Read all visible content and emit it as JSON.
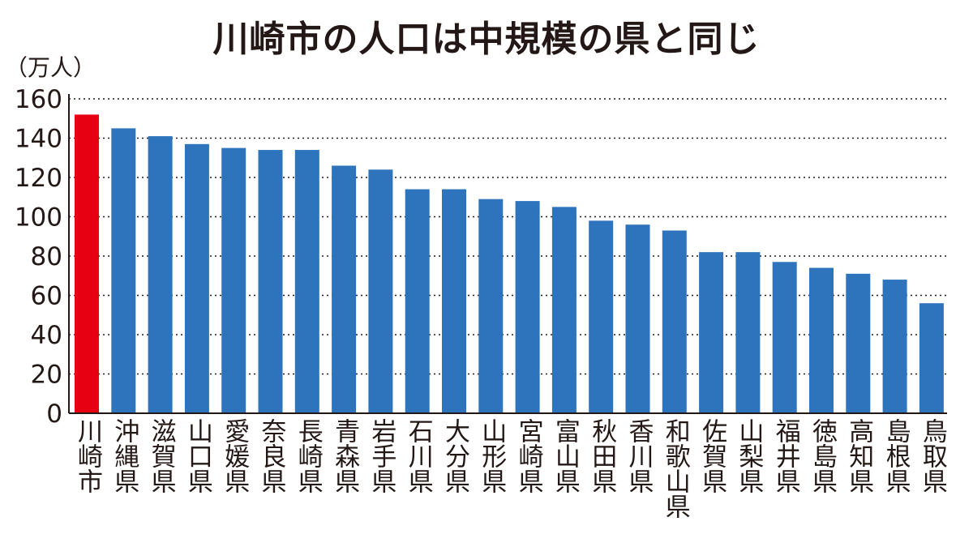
{
  "chart_data": {
    "type": "bar",
    "title": "川崎市の人口は中規模の県と同じ",
    "ylabel": "（万人）",
    "xlabel": "",
    "ylim": [
      0,
      160
    ],
    "yticks": [
      0,
      20,
      40,
      60,
      80,
      100,
      120,
      140,
      160
    ],
    "grid": true,
    "categories": [
      "川崎市",
      "沖縄県",
      "滋賀県",
      "山口県",
      "愛媛県",
      "奈良県",
      "長崎県",
      "青森県",
      "岩手県",
      "石川県",
      "大分県",
      "山形県",
      "宮崎県",
      "富山県",
      "秋田県",
      "香川県",
      "和歌山県",
      "佐賀県",
      "山梨県",
      "福井県",
      "徳島県",
      "高知県",
      "島根県",
      "鳥取県"
    ],
    "values": [
      152,
      145,
      141,
      137,
      135,
      134,
      134,
      126,
      124,
      114,
      114,
      109,
      108,
      105,
      98,
      96,
      93,
      82,
      82,
      77,
      74,
      71,
      68,
      56
    ],
    "highlight_index": 0,
    "colors": {
      "highlight": "#e60012",
      "bar": "#2e74bd",
      "grid": "#231815"
    }
  }
}
